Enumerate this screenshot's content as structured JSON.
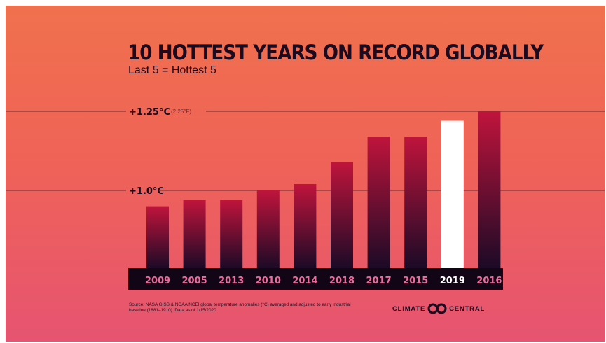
{
  "chart_data": {
    "type": "bar",
    "title": "10 HOTTEST YEARS ON RECORD GLOBALLY",
    "subtitle": "Last 5 = Hottest 5",
    "categories": [
      "2009",
      "2005",
      "2013",
      "2010",
      "2014",
      "2018",
      "2017",
      "2015",
      "2019",
      "2016"
    ],
    "series": [
      {
        "values": [
          0.95,
          0.97,
          0.97,
          1.0,
          1.02,
          1.09,
          1.17,
          1.17,
          1.22,
          1.25
        ]
      }
    ],
    "unit": "°C",
    "ylim": [
      0.8,
      1.25
    ],
    "reference_lines": [
      {
        "value": 1.25,
        "label": "+1.25°C",
        "note": "(2.25°F)"
      },
      {
        "value": 1.0,
        "label": "+1.0°C",
        "note": ""
      }
    ],
    "highlight_category": "2019",
    "grid": false,
    "legend": "none",
    "colors": {
      "bar_top": "#c0143c",
      "bar_bottom": "#1c0a26",
      "highlight": "#ffffff",
      "axis_band": "#120616",
      "tick_label": "#f06a9c",
      "highlight_label": "#ffffff",
      "reference_line": "#6b2a30"
    }
  },
  "source": "Source: NASA GISS & NOAA NCEI global temperature anomalies (°C) averaged and adjusted to early industrial baseline (1881–1910). Data as of 1/15/2020.",
  "logo": {
    "left_word": "CLIMATE",
    "right_word": "CENTRAL",
    "icon": "climate-central-logo-icon"
  }
}
